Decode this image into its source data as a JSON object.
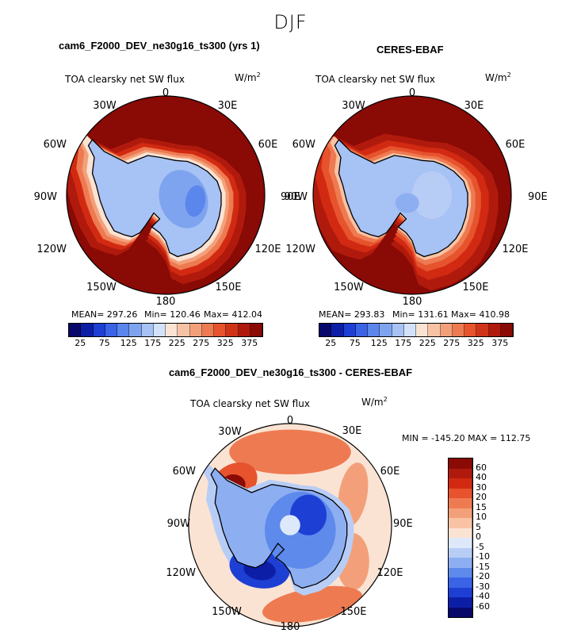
{
  "figure": {
    "title": "DJF",
    "variable": "TOA clearsky net SW flux",
    "units": "W/m²"
  },
  "panels": [
    {
      "title": "cam6_F2000_DEV_ne30g16_ts300 (yrs 1)",
      "stats": {
        "mean": "MEAN= 297.26",
        "min": "Min= 120.46",
        "max": "Max= 412.04"
      }
    },
    {
      "title": "CERES-EBAF",
      "stats": {
        "mean": "MEAN= 293.83",
        "min": "Min= 131.61",
        "max": "Max= 410.98"
      }
    },
    {
      "title": "cam6_F2000_DEV_ne30g16_ts300 - CERES-EBAF",
      "stats": {
        "minmax": "MIN = -145.20  MAX = 112.75"
      }
    }
  ],
  "longitude_labels": [
    "0",
    "30E",
    "60E",
    "90E",
    "120E",
    "150E",
    "180",
    "150W",
    "120W",
    "90W",
    "60W",
    "30W"
  ],
  "colorbar_abs": {
    "ticks": [
      "25",
      "75",
      "125",
      "175",
      "225",
      "275",
      "325",
      "375"
    ],
    "colors": [
      "#08086b",
      "#0d1ea6",
      "#1e3fd4",
      "#3a63e6",
      "#5b86ec",
      "#7fa4ef",
      "#a7c2f4",
      "#d3e2f8",
      "#fbe3d3",
      "#f8c3a4",
      "#f3a07a",
      "#ee7a52",
      "#e6532d",
      "#cf3419",
      "#b01a0d",
      "#8a0a05"
    ]
  },
  "colorbar_diff": {
    "ticks": [
      "60",
      "40",
      "30",
      "20",
      "15",
      "10",
      "5",
      "0",
      "-5",
      "-10",
      "-15",
      "-20",
      "-30",
      "-40",
      "-60"
    ],
    "colors": [
      "#8a0a05",
      "#b01a0d",
      "#d22a12",
      "#e6532d",
      "#ee7a52",
      "#f3a07a",
      "#f8c3a4",
      "#fbe3d3",
      "#dde9fa",
      "#b8cdf6",
      "#8daff1",
      "#5e8aec",
      "#3a63e6",
      "#1e3fd4",
      "#0d1ea6",
      "#08086b"
    ]
  },
  "chart_data": [
    {
      "type": "heatmap",
      "title": "cam6_F2000_DEV_ne30g16_ts300 (yrs 1)",
      "projection": "south polar stereographic",
      "variable": "TOA clearsky net SW flux",
      "units": "W/m²",
      "mean": 297.26,
      "min": 120.46,
      "max": 412.04,
      "levels": [
        25,
        50,
        75,
        100,
        125,
        150,
        175,
        200,
        225,
        250,
        275,
        300,
        325,
        350,
        375
      ],
      "approx_field": {
        "antarctic_interior": 130,
        "antarctic_coast": 160,
        "sea_ice_zone": 250,
        "southern_ocean": 400
      }
    },
    {
      "type": "heatmap",
      "title": "CERES-EBAF",
      "projection": "south polar stereographic",
      "variable": "TOA clearsky net SW flux",
      "units": "W/m²",
      "mean": 293.83,
      "min": 131.61,
      "max": 410.98,
      "levels": [
        25,
        50,
        75,
        100,
        125,
        150,
        175,
        200,
        225,
        250,
        275,
        300,
        325,
        350,
        375
      ],
      "approx_field": {
        "antarctic_interior": 150,
        "antarctic_coast": 170,
        "sea_ice_zone": 260,
        "southern_ocean": 400
      }
    },
    {
      "type": "heatmap",
      "title": "cam6_F2000_DEV_ne30g16_ts300 - CERES-EBAF",
      "projection": "south polar stereographic",
      "variable": "TOA clearsky net SW flux",
      "units": "W/m²",
      "min": -145.2,
      "max": 112.75,
      "levels": [
        -60,
        -40,
        -30,
        -20,
        -15,
        -10,
        -5,
        0,
        5,
        10,
        15,
        20,
        30,
        40,
        60
      ],
      "approx_field": {
        "antarctic_interior": -15,
        "ross_sea": -50,
        "weddell_sea": 60,
        "southern_ocean": 5
      }
    }
  ]
}
